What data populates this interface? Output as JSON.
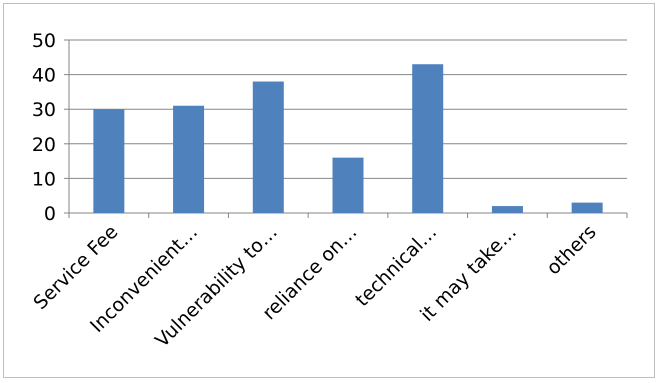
{
  "chart_data": {
    "type": "bar",
    "categories": [
      "Service Fee",
      "Inconvenient…",
      "Vulnerability to…",
      "reliance on…",
      "technical…",
      "it may take…",
      "others"
    ],
    "values": [
      30,
      31,
      38,
      16,
      43,
      2,
      3
    ],
    "ylim": [
      0,
      50
    ],
    "yticks": [
      "0",
      "10",
      "20",
      "30",
      "40",
      "50"
    ],
    "grid": true,
    "legend": "none",
    "bar_color": "#4f81bd",
    "grid_color": "#868686"
  }
}
